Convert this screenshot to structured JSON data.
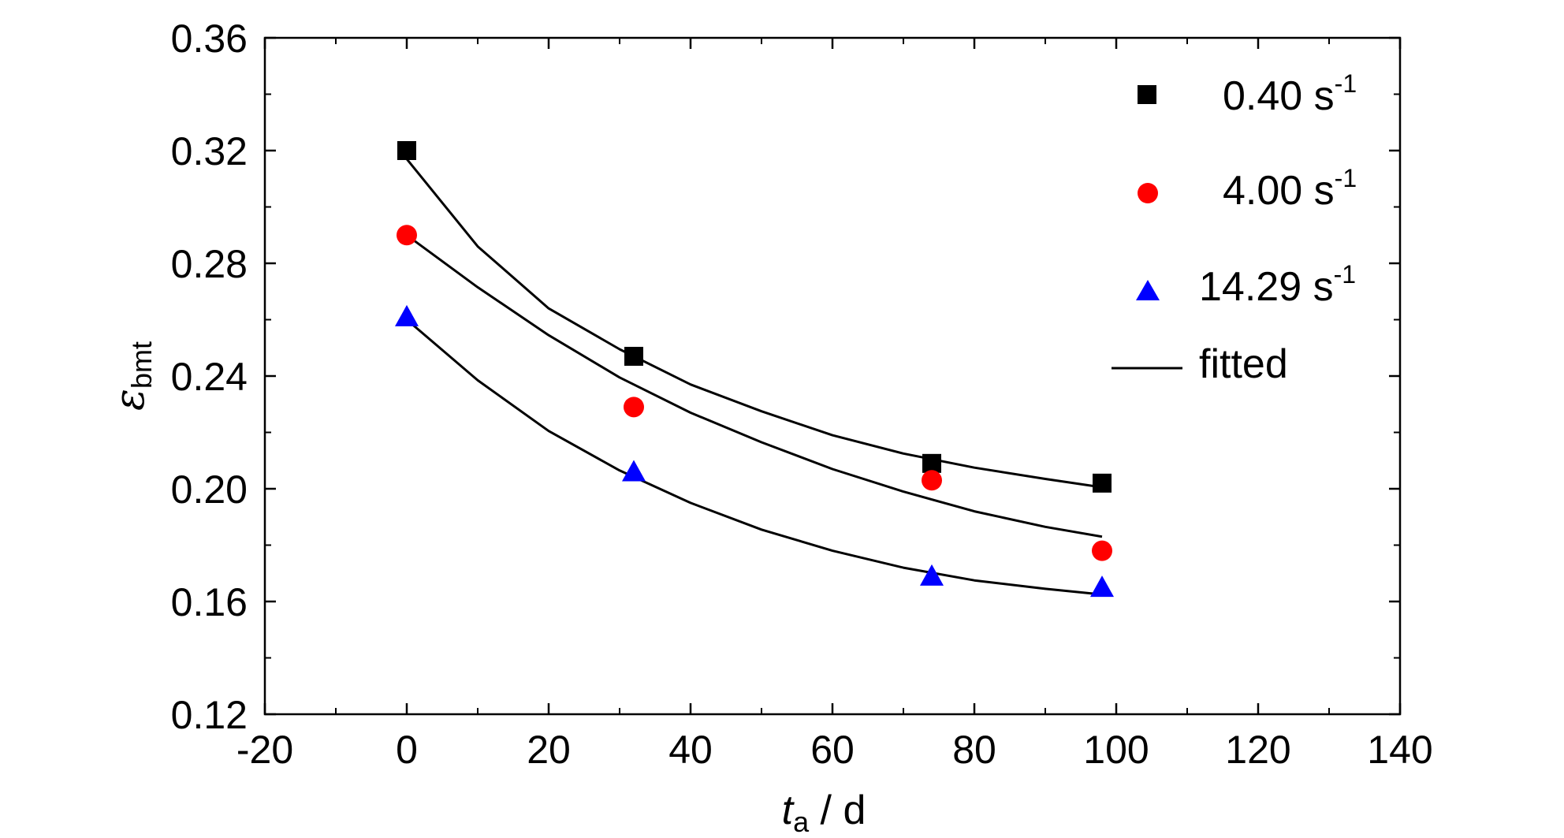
{
  "chart_data": {
    "type": "scatter",
    "xlim": [
      -20,
      140
    ],
    "ylim": [
      0.12,
      0.36
    ],
    "x_ticks": [
      -20,
      0,
      20,
      40,
      60,
      80,
      100,
      120,
      140
    ],
    "x_tick_labels": [
      "-20",
      "0",
      "20",
      "40",
      "60",
      "80",
      "100",
      "120",
      "140"
    ],
    "y_ticks": [
      0.12,
      0.16,
      0.2,
      0.24,
      0.28,
      0.32,
      0.36
    ],
    "y_tick_labels": [
      "0.12",
      "0.16",
      "0.20",
      "0.24",
      "0.28",
      "0.32",
      "0.36"
    ],
    "xlabel": {
      "main": "t",
      "sub": "a",
      "rest": " / d"
    },
    "ylabel": {
      "main": "ε",
      "sub": "bmt"
    },
    "legend_position": "top-right",
    "grid": false,
    "series": [
      {
        "name": "0.40 s",
        "sup": "-1",
        "marker": "square",
        "color": "#000000",
        "x": [
          0,
          32,
          74,
          98
        ],
        "y": [
          0.32,
          0.247,
          0.209,
          0.202
        ]
      },
      {
        "name": "4.00 s",
        "sup": "-1",
        "marker": "circle",
        "color": "#ff0000",
        "x": [
          0,
          32,
          74,
          98
        ],
        "y": [
          0.29,
          0.229,
          0.203,
          0.178
        ]
      },
      {
        "name": "14.29 s",
        "sup": "-1",
        "marker": "triangle",
        "color": "#0000ff",
        "x": [
          0,
          32,
          74,
          98
        ],
        "y": [
          0.261,
          0.206,
          0.169,
          0.165
        ]
      }
    ],
    "fitted": {
      "name": "fitted",
      "color": "#000000",
      "curves": [
        {
          "x": [
            0,
            10,
            20,
            30,
            40,
            50,
            60,
            70,
            80,
            90,
            98
          ],
          "y": [
            0.317,
            0.286,
            0.264,
            0.2495,
            0.237,
            0.2275,
            0.219,
            0.2125,
            0.2075,
            0.2035,
            0.2005
          ]
        },
        {
          "x": [
            0,
            10,
            20,
            30,
            40,
            50,
            60,
            70,
            80,
            90,
            98
          ],
          "y": [
            0.29,
            0.2715,
            0.2545,
            0.2395,
            0.227,
            0.2165,
            0.207,
            0.199,
            0.192,
            0.1865,
            0.183
          ]
        },
        {
          "x": [
            0,
            10,
            20,
            30,
            40,
            50,
            60,
            70,
            80,
            90,
            98
          ],
          "y": [
            0.26,
            0.2385,
            0.2205,
            0.2065,
            0.195,
            0.1855,
            0.178,
            0.172,
            0.1675,
            0.1645,
            0.1625
          ]
        }
      ]
    }
  }
}
